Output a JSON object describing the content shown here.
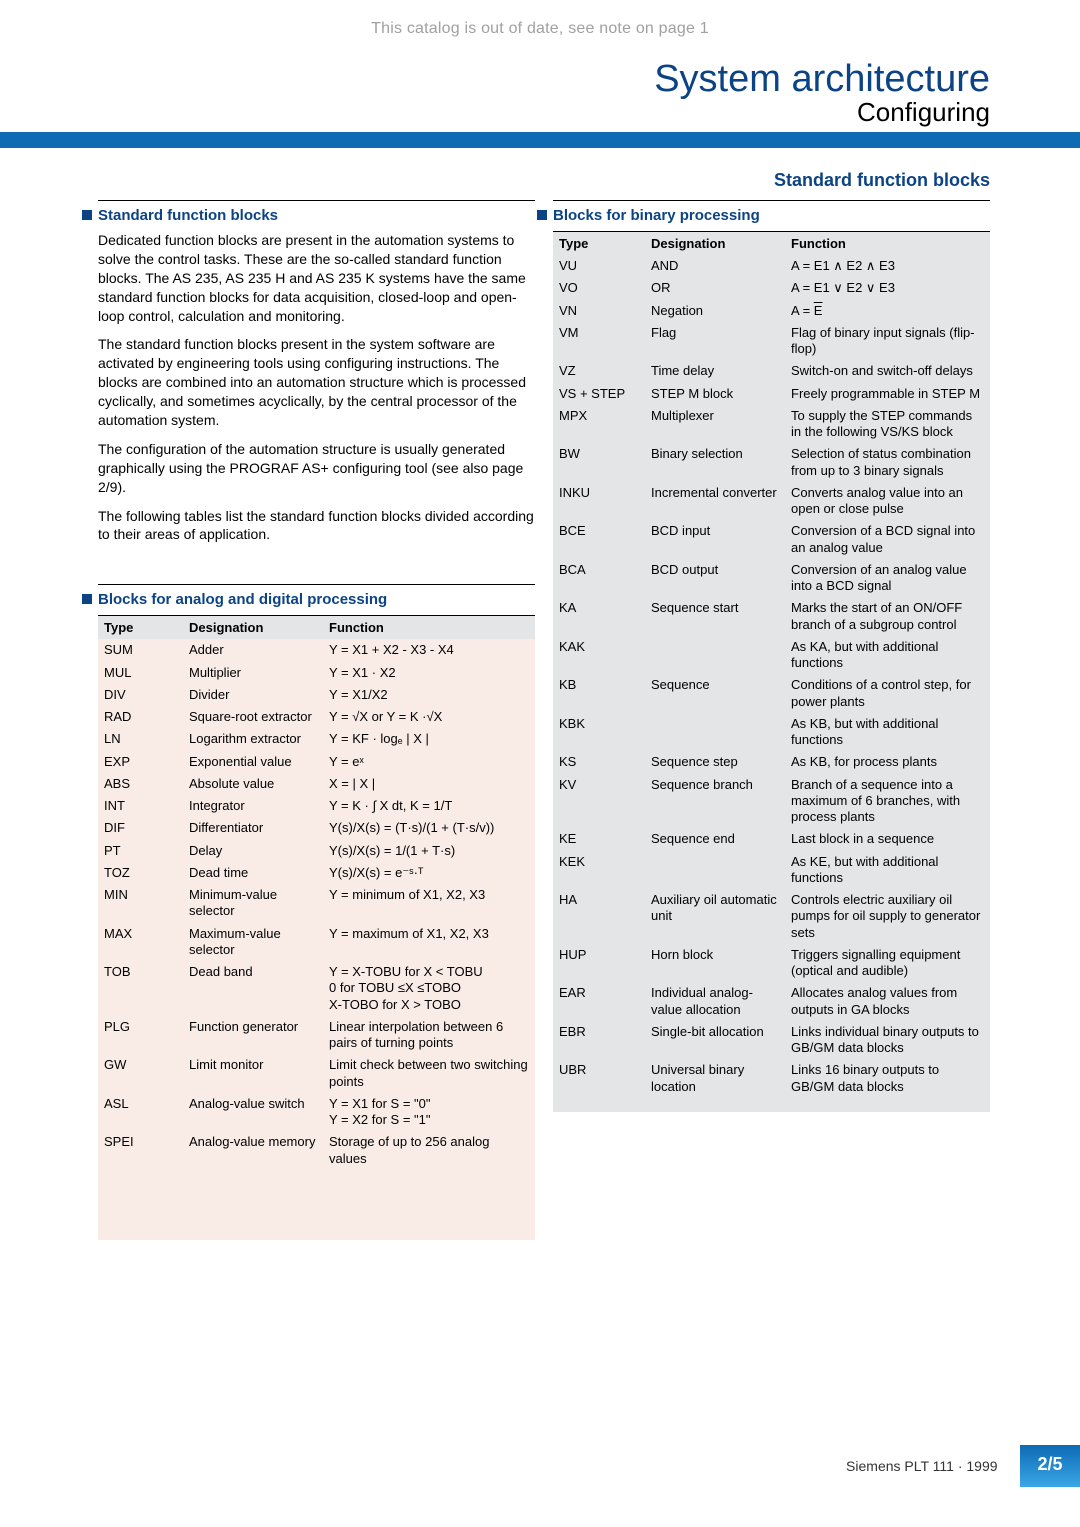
{
  "topNote": "This catalog is out of date, see note on page 1",
  "header": {
    "title": "System architecture",
    "subtitle": "Configuring"
  },
  "subhead": "Standard function blocks",
  "left": {
    "heading1": "Standard function blocks",
    "paragraphs": [
      "Dedicated function blocks are present in the automation systems to solve the control tasks. These are the so-called standard function blocks. The AS 235, AS 235 H and AS 235 K systems have the same standard function blocks for data acquisition, closed-loop and open-loop control, calculation and monitoring.",
      "The standard function blocks present in the system software are activated by engineering tools using configuring instructions. The blocks are combined into an automation structure which is processed cyclically, and sometimes acyclically, by the central processor of the automation system.",
      "The configuration of the automation structure is usually generated graphically using the PROGRAF AS+ configuring tool (see also page 2/9).",
      "The following tables list the standard function blocks divided according to their areas of application."
    ],
    "heading2": "Blocks for analog and digital processing",
    "tableHeaders": {
      "type": "Type",
      "designation": "Designation",
      "function": "Function"
    },
    "rows": [
      {
        "type": "SUM",
        "designation": "Adder",
        "function": "Y = X1 + X2 - X3 - X4"
      },
      {
        "type": "MUL",
        "designation": "Multiplier",
        "function": "Y = X1 · X2"
      },
      {
        "type": "DIV",
        "designation": "Divider",
        "function": "Y = X1/X2"
      },
      {
        "type": "RAD",
        "designation": "Square-root extractor",
        "function": "Y = √X  or Y = K ·√X"
      },
      {
        "type": "LN",
        "designation": "Logarithm extractor",
        "function": "Y = KF · logₑ | X |"
      },
      {
        "type": "EXP",
        "designation": "Exponential value",
        "function": "Y = eˣ"
      },
      {
        "type": "ABS",
        "designation": "Absolute value",
        "function": "X = | X |"
      },
      {
        "type": "INT",
        "designation": "Integrator",
        "function": "Y = K · ∫ X dt, K = 1/T"
      },
      {
        "type": "DIF",
        "designation": "Differentiator",
        "function": "Y(s)/X(s) = (T·s)/(1 + (T·s/v))"
      },
      {
        "type": "PT",
        "designation": "Delay",
        "function": "Y(s)/X(s) = 1/(1 + T·s)"
      },
      {
        "type": "TOZ",
        "designation": "Dead time",
        "function": "Y(s)/X(s) = e⁻ˢ·ᵀ"
      },
      {
        "type": "MIN",
        "designation": "Minimum-value selector",
        "function": "Y = minimum of X1, X2, X3"
      },
      {
        "type": "MAX",
        "designation": "Maximum-value selector",
        "function": "Y = maximum of X1, X2, X3"
      },
      {
        "type": "TOB",
        "designation": "Dead band",
        "function": "Y = X-TOBU  for X < TOBU\n       0        for TOBU ≤X ≤TOBO\n       X-TOBO  for X > TOBO"
      },
      {
        "type": "PLG",
        "designation": "Function generator",
        "function": "Linear interpolation between 6 pairs of turning points"
      },
      {
        "type": "GW",
        "designation": "Limit monitor",
        "function": "Limit check between two switching points"
      },
      {
        "type": "ASL",
        "designation": "Analog-value switch",
        "function": "Y = X1 for S = \"0\"\nY = X2 for S = \"1\""
      },
      {
        "type": "SPEI",
        "designation": "Analog-value memory",
        "function": "Storage of up to 256 analog values"
      }
    ]
  },
  "right": {
    "heading": "Blocks for binary processing",
    "tableHeaders": {
      "type": "Type",
      "designation": "Designation",
      "function": "Function"
    },
    "rows": [
      {
        "type": "VU",
        "designation": "AND",
        "function": "A = E1 ∧ E2 ∧ E3"
      },
      {
        "type": "VO",
        "designation": "OR",
        "function": "A = E1 ∨  E2 ∨  E3"
      },
      {
        "type": "VN",
        "designation": "Negation",
        "function": "A = E̅"
      },
      {
        "type": "VM",
        "designation": "Flag",
        "function": "Flag of binary input signals (flip-flop)"
      },
      {
        "type": "VZ",
        "designation": "Time delay",
        "function": "Switch-on and switch-off delays"
      },
      {
        "type": "VS + STEP",
        "designation": "STEP M block",
        "function": "Freely programmable in STEP M"
      },
      {
        "type": "MPX",
        "designation": "Multiplexer",
        "function": "To supply the STEP commands in the following VS/KS block"
      },
      {
        "type": "BW",
        "designation": "Binary selection",
        "function": "Selection of status combination from up to 3 binary signals"
      },
      {
        "type": "INKU",
        "designation": "Incremental converter",
        "function": "Converts analog value into an open or close pulse"
      },
      {
        "type": "BCE",
        "designation": "BCD input",
        "function": "Conversion of a BCD signal into an analog value"
      },
      {
        "type": "BCA",
        "designation": "BCD output",
        "function": "Conversion of an analog value into a BCD signal"
      },
      {
        "type": "KA",
        "designation": "Sequence start",
        "function": "Marks the start of an ON/OFF branch of a subgroup control"
      },
      {
        "type": "KAK",
        "designation": "",
        "function": "As KA, but with additional functions"
      },
      {
        "type": "KB",
        "designation": "Sequence",
        "function": "Conditions of a control step, for power plants"
      },
      {
        "type": "KBK",
        "designation": "",
        "function": "As KB, but with additional functions"
      },
      {
        "type": "KS",
        "designation": "Sequence step",
        "function": "As KB, for process plants"
      },
      {
        "type": "KV",
        "designation": "Sequence branch",
        "function": "Branch of a sequence into a maximum of 6 branches, with process plants"
      },
      {
        "type": "KE",
        "designation": "Sequence end",
        "function": "Last block in a sequence"
      },
      {
        "type": "KEK",
        "designation": "",
        "function": "As KE, but with additional functions"
      },
      {
        "type": "HA",
        "designation": "Auxiliary oil automatic unit",
        "function": "Controls electric auxiliary oil pumps for oil supply to generator sets"
      },
      {
        "type": "HUP",
        "designation": "Horn block",
        "function": "Triggers signalling equipment (optical and audible)"
      },
      {
        "type": "EAR",
        "designation": "Individual analog-value allocation",
        "function": "Allocates analog values from outputs in GA blocks"
      },
      {
        "type": "EBR",
        "designation": "Single-bit allocation",
        "function": "Links individual binary outputs to GB/GM data blocks"
      },
      {
        "type": "UBR",
        "designation": "Universal binary location",
        "function": "Links 16 binary outputs to GB/GM data blocks"
      }
    ]
  },
  "footer": {
    "text": "Siemens PLT 111 · 1999",
    "page": "2/5"
  }
}
